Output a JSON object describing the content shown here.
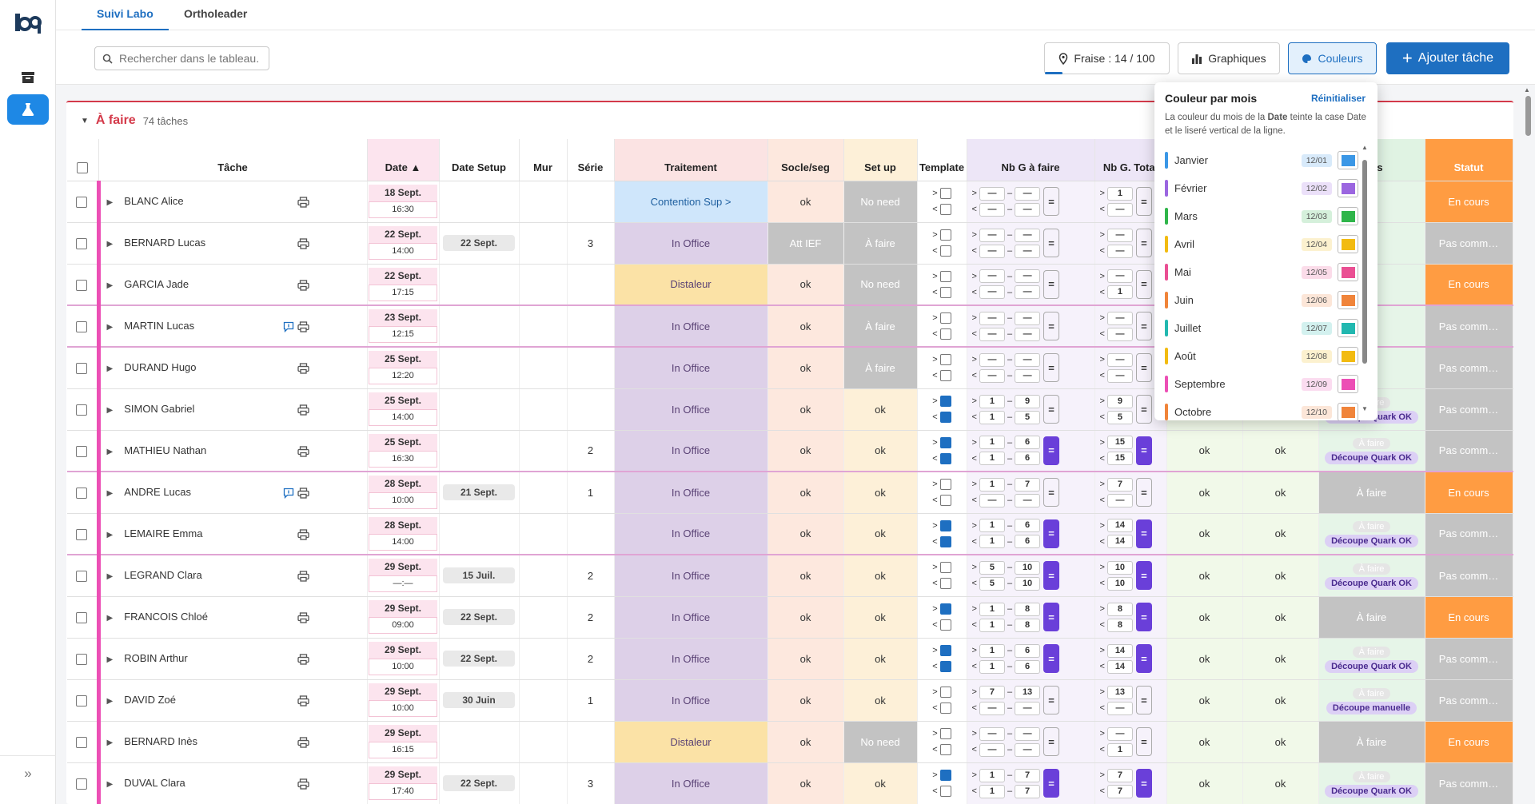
{
  "tabs": [
    {
      "label": "Suivi Labo"
    },
    {
      "label": "Ortholeader"
    }
  ],
  "search": {
    "placeholder": "Rechercher dans le tableau."
  },
  "toolbar": {
    "fraise_label": "Fraise : 14 / 100",
    "fraise_progress": 0.14,
    "graphiques_label": "Graphiques",
    "couleurs_label": "Couleurs",
    "add_label": "Ajouter tâche"
  },
  "section": {
    "title": "À faire",
    "count": "74 tâches"
  },
  "columns": [
    "Tâche",
    "Date ▲",
    "Date Setup",
    "Mur",
    "Série",
    "Traitement",
    "Socle/seg",
    "Set up",
    "Template",
    "Nb G à faire",
    "Nb G. Total",
    "",
    "",
    "…ns",
    "Statut"
  ],
  "colors": {
    "accent": "#1e6fc1",
    "todo": "#d43a4a",
    "pink_line": "#ec4fb5",
    "purple": "#6a3fd9"
  },
  "rows": [
    {
      "name": "BLANC Alice",
      "date": "18 Sept.",
      "time": "16:30",
      "setup": "",
      "mur": "",
      "serie": "",
      "traitement": "Contention Sup >",
      "trait_color": "#cfe6fb",
      "socle": "ok",
      "setup_state": "No need",
      "setup_dark": true,
      "tpl": [
        false,
        false
      ],
      "ng": [
        "—",
        "—",
        "—",
        "—"
      ],
      "ng_eq": false,
      "nt": [
        "1",
        "—"
      ],
      "nt_eq": false,
      "s1": "",
      "s2": "",
      "s3": "",
      "statut": "En cours",
      "statut_color": "#ff9c42",
      "msg": false
    },
    {
      "name": "BERNARD Lucas",
      "date": "22 Sept.",
      "time": "14:00",
      "setup": "22 Sept.",
      "mur": "",
      "serie": "3",
      "traitement": "In Office",
      "trait_color": "#ddd0e8",
      "socle": "Att IEF",
      "socle_dark": true,
      "setup_state": "À faire",
      "setup_dark": true,
      "tpl": [
        false,
        false
      ],
      "ng": [
        "—",
        "—",
        "—",
        "—"
      ],
      "ng_eq": false,
      "nt": [
        "—",
        "—"
      ],
      "nt_eq": false,
      "s1": "",
      "s2": "",
      "s3": "",
      "statut": "Pas comm…",
      "statut_color": "#c3c3c3",
      "msg": false
    },
    {
      "name": "GARCIA Jade",
      "date": "22 Sept.",
      "time": "17:15",
      "setup": "",
      "mur": "",
      "serie": "",
      "traitement": "Distaleur",
      "trait_color": "#fbe2a6",
      "socle": "ok",
      "setup_state": "No need",
      "setup_dark": true,
      "tpl": [
        false,
        false
      ],
      "ng": [
        "—",
        "—",
        "—",
        "—"
      ],
      "ng_eq": false,
      "nt": [
        "—",
        "1"
      ],
      "nt_eq": false,
      "s1": "",
      "s2": "",
      "s3": "",
      "statut": "En cours",
      "statut_color": "#ff9c42",
      "msg": false
    },
    {
      "name": "MARTIN Lucas",
      "date": "23 Sept.",
      "time": "12:15",
      "setup": "",
      "mur": "",
      "serie": "",
      "traitement": "In Office",
      "trait_color": "#ddd0e8",
      "socle": "ok",
      "setup_state": "À faire",
      "setup_dark": true,
      "tpl": [
        false,
        false
      ],
      "ng": [
        "—",
        "—",
        "—",
        "—"
      ],
      "ng_eq": false,
      "nt": [
        "—",
        "—"
      ],
      "nt_eq": false,
      "s1": "",
      "s2": "",
      "s3": "",
      "statut": "Pas comm…",
      "statut_color": "#c3c3c3",
      "msg": true,
      "mark": true
    },
    {
      "name": "DURAND Hugo",
      "date": "25 Sept.",
      "time": "12:20",
      "setup": "",
      "mur": "",
      "serie": "",
      "traitement": "In Office",
      "trait_color": "#ddd0e8",
      "socle": "ok",
      "setup_state": "À faire",
      "setup_dark": true,
      "tpl": [
        false,
        false
      ],
      "ng": [
        "—",
        "—",
        "—",
        "—"
      ],
      "ng_eq": false,
      "nt": [
        "—",
        "—"
      ],
      "nt_eq": false,
      "s1": "",
      "s2": "",
      "s3": "",
      "statut": "Pas comm…",
      "statut_color": "#c3c3c3",
      "msg": false,
      "mark": true
    },
    {
      "name": "SIMON Gabriel",
      "date": "25 Sept.",
      "time": "14:00",
      "setup": "",
      "mur": "",
      "serie": "",
      "traitement": "In Office",
      "trait_color": "#ddd0e8",
      "socle": "ok",
      "setup_state": "ok",
      "setup_dark": false,
      "tpl": [
        true,
        true
      ],
      "ng": [
        "1",
        "9",
        "1",
        "5"
      ],
      "ng_eq": false,
      "nt": [
        "9",
        "5"
      ],
      "nt_eq": false,
      "s1": "",
      "s2": "",
      "s3": "Découpe Quark OK",
      "statut": "Pas comm…",
      "statut_color": "#c3c3c3",
      "msg": false
    },
    {
      "name": "MATHIEU Nathan",
      "date": "25 Sept.",
      "time": "16:30",
      "setup": "",
      "mur": "",
      "serie": "2",
      "traitement": "In Office",
      "trait_color": "#ddd0e8",
      "socle": "ok",
      "setup_state": "ok",
      "setup_dark": false,
      "tpl": [
        true,
        true
      ],
      "ng": [
        "1",
        "6",
        "1",
        "6"
      ],
      "ng_eq": true,
      "nt": [
        "15",
        "15"
      ],
      "nt_eq": true,
      "s1": "ok",
      "s2": "ok",
      "s3": "Découpe Quark OK",
      "statut": "Pas comm…",
      "statut_color": "#c3c3c3",
      "msg": false
    },
    {
      "name": "ANDRE Lucas",
      "date": "28 Sept.",
      "time": "10:00",
      "setup": "21 Sept.",
      "mur": "",
      "serie": "1",
      "traitement": "In Office",
      "trait_color": "#ddd0e8",
      "socle": "ok",
      "setup_state": "ok",
      "setup_dark": false,
      "tpl": [
        false,
        false
      ],
      "ng": [
        "1",
        "7",
        "—",
        "—"
      ],
      "ng_eq": false,
      "nt": [
        "7",
        "—"
      ],
      "nt_eq": false,
      "s1": "ok",
      "s2": "ok",
      "s3": "À faire",
      "s3_dark": true,
      "statut": "En cours",
      "statut_color": "#ff9c42",
      "msg": true,
      "mark": true
    },
    {
      "name": "LEMAIRE Emma",
      "date": "28 Sept.",
      "time": "14:00",
      "setup": "",
      "mur": "",
      "serie": "",
      "traitement": "In Office",
      "trait_color": "#ddd0e8",
      "socle": "ok",
      "setup_state": "ok",
      "setup_dark": false,
      "tpl": [
        true,
        true
      ],
      "ng": [
        "1",
        "6",
        "1",
        "6"
      ],
      "ng_eq": true,
      "nt": [
        "14",
        "14"
      ],
      "nt_eq": true,
      "s1": "ok",
      "s2": "ok",
      "s3": "Découpe Quark OK",
      "statut": "Pas comm…",
      "statut_color": "#c3c3c3",
      "msg": false
    },
    {
      "name": "LEGRAND Clara",
      "date": "29 Sept.",
      "time": "—:—",
      "setup": "15 Juil.",
      "mur": "",
      "serie": "2",
      "traitement": "In Office",
      "trait_color": "#ddd0e8",
      "socle": "ok",
      "setup_state": "ok",
      "setup_dark": false,
      "tpl": [
        false,
        false
      ],
      "ng": [
        "5",
        "10",
        "5",
        "10"
      ],
      "ng_eq": true,
      "nt": [
        "10",
        "10"
      ],
      "nt_eq": true,
      "s1": "ok",
      "s2": "ok",
      "s3": "Découpe Quark OK",
      "statut": "Pas comm…",
      "statut_color": "#c3c3c3",
      "msg": false,
      "mark": true
    },
    {
      "name": "FRANCOIS Chloé",
      "date": "29 Sept.",
      "time": "09:00",
      "setup": "22 Sept.",
      "mur": "",
      "serie": "2",
      "traitement": "In Office",
      "trait_color": "#ddd0e8",
      "socle": "ok",
      "setup_state": "ok",
      "setup_dark": false,
      "tpl": [
        true,
        false
      ],
      "ng": [
        "1",
        "8",
        "1",
        "8"
      ],
      "ng_eq": true,
      "nt": [
        "8",
        "8"
      ],
      "nt_eq": true,
      "s1": "ok",
      "s2": "ok",
      "s3": "À faire",
      "s3_dark": true,
      "statut": "En cours",
      "statut_color": "#ff9c42",
      "msg": false
    },
    {
      "name": "ROBIN Arthur",
      "date": "29 Sept.",
      "time": "10:00",
      "setup": "22 Sept.",
      "mur": "",
      "serie": "2",
      "traitement": "In Office",
      "trait_color": "#ddd0e8",
      "socle": "ok",
      "setup_state": "ok",
      "setup_dark": false,
      "tpl": [
        true,
        true
      ],
      "ng": [
        "1",
        "6",
        "1",
        "6"
      ],
      "ng_eq": true,
      "nt": [
        "14",
        "14"
      ],
      "nt_eq": true,
      "s1": "ok",
      "s2": "ok",
      "s3": "Découpe Quark OK",
      "statut": "Pas comm…",
      "statut_color": "#c3c3c3",
      "msg": false
    },
    {
      "name": "DAVID Zoé",
      "date": "29 Sept.",
      "time": "10:00",
      "setup": "30 Juin",
      "mur": "",
      "serie": "1",
      "traitement": "In Office",
      "trait_color": "#ddd0e8",
      "socle": "ok",
      "setup_state": "ok",
      "setup_dark": false,
      "tpl": [
        false,
        false
      ],
      "ng": [
        "7",
        "13",
        "—",
        "—"
      ],
      "ng_eq": false,
      "nt": [
        "13",
        "—"
      ],
      "nt_eq": false,
      "s1": "ok",
      "s2": "ok",
      "s3": "Découpe manuelle",
      "statut": "Pas comm…",
      "statut_color": "#c3c3c3",
      "msg": false
    },
    {
      "name": "BERNARD Inès",
      "date": "29 Sept.",
      "time": "16:15",
      "setup": "",
      "mur": "",
      "serie": "",
      "traitement": "Distaleur",
      "trait_color": "#fbe2a6",
      "socle": "ok",
      "setup_state": "No need",
      "setup_dark": true,
      "tpl": [
        false,
        false
      ],
      "ng": [
        "—",
        "—",
        "—",
        "—"
      ],
      "ng_eq": false,
      "nt": [
        "—",
        "1"
      ],
      "nt_eq": false,
      "s1": "ok",
      "s2": "ok",
      "s3": "À faire",
      "s3_dark": true,
      "statut": "En cours",
      "statut_color": "#ff9c42",
      "msg": false
    },
    {
      "name": "DUVAL Clara",
      "date": "29 Sept.",
      "time": "17:40",
      "setup": "22 Sept.",
      "mur": "",
      "serie": "3",
      "traitement": "In Office",
      "trait_color": "#ddd0e8",
      "socle": "ok",
      "setup_state": "ok",
      "setup_dark": false,
      "tpl": [
        true,
        false
      ],
      "ng": [
        "1",
        "7",
        "1",
        "7"
      ],
      "ng_eq": true,
      "nt": [
        "7",
        "7"
      ],
      "nt_eq": true,
      "s1": "ok",
      "s2": "ok",
      "s3": "Découpe Quark OK",
      "statut": "Pas comm…",
      "statut_color": "#c3c3c3",
      "msg": false
    }
  ],
  "popover": {
    "title": "Couleur par mois",
    "reset": "Réinitialiser",
    "desc_pre": "La couleur du mois de la ",
    "desc_bold": "Date",
    "desc_post": " teinte la case Date et le liseré vertical de la ligne.",
    "months": [
      {
        "name": "Janvier",
        "code": "12/01",
        "color": "#3b97e6"
      },
      {
        "name": "Février",
        "code": "12/02",
        "color": "#9b66e0"
      },
      {
        "name": "Mars",
        "code": "12/03",
        "color": "#2fb54a"
      },
      {
        "name": "Avril",
        "code": "12/04",
        "color": "#f2bb11"
      },
      {
        "name": "Mai",
        "code": "12/05",
        "color": "#ea4f93"
      },
      {
        "name": "Juin",
        "code": "12/06",
        "color": "#f0843a"
      },
      {
        "name": "Juillet",
        "code": "12/07",
        "color": "#22b8b0"
      },
      {
        "name": "Août",
        "code": "12/08",
        "color": "#f2bb11"
      },
      {
        "name": "Septembre",
        "code": "12/09",
        "color": "#ec4fb5"
      },
      {
        "name": "Octobre",
        "code": "12/10",
        "color": "#f0843a"
      }
    ]
  }
}
